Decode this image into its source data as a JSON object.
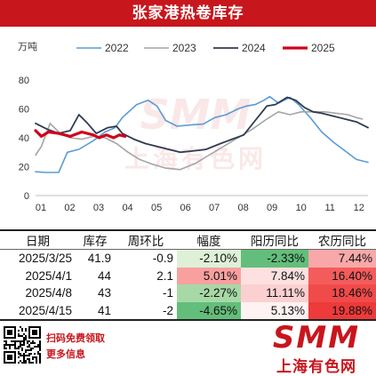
{
  "title": "张家港热卷库存",
  "chart_data": {
    "type": "line",
    "ylabel": "万吨",
    "ylim": [
      0,
      80
    ],
    "yticks": [
      0,
      20,
      40,
      60,
      80
    ],
    "xlim": [
      1,
      12.5
    ],
    "xticks": [
      "01",
      "02",
      "03",
      "04",
      "05",
      "06",
      "07",
      "08",
      "09",
      "10",
      "11",
      "12"
    ],
    "grid": false,
    "legend_position": "top",
    "watermark": "SMM 上海有色网",
    "series": [
      {
        "name": "2022",
        "color": "#5b9bd5",
        "width": 1.6,
        "points": [
          [
            1.0,
            16.5
          ],
          [
            1.35,
            16
          ],
          [
            1.8,
            16
          ],
          [
            2.1,
            30
          ],
          [
            2.5,
            32
          ],
          [
            3.0,
            38
          ],
          [
            3.4,
            44
          ],
          [
            3.75,
            47
          ],
          [
            4.0,
            54
          ],
          [
            4.5,
            63
          ],
          [
            4.9,
            66
          ],
          [
            5.2,
            62
          ],
          [
            5.5,
            52
          ],
          [
            5.9,
            48
          ],
          [
            6.4,
            49
          ],
          [
            6.8,
            49.5
          ],
          [
            7.2,
            54
          ],
          [
            7.6,
            56
          ],
          [
            8.0,
            60
          ],
          [
            8.3,
            62
          ],
          [
            8.6,
            63
          ],
          [
            8.9,
            66
          ],
          [
            9.1,
            68.5
          ],
          [
            9.4,
            64
          ],
          [
            9.8,
            68
          ],
          [
            10.1,
            63
          ],
          [
            10.5,
            54
          ],
          [
            10.9,
            44
          ],
          [
            11.3,
            37
          ],
          [
            11.7,
            31
          ],
          [
            12.1,
            25
          ],
          [
            12.5,
            23
          ]
        ]
      },
      {
        "name": "2023",
        "color": "#a5a5a5",
        "width": 1.6,
        "points": [
          [
            1.0,
            28
          ],
          [
            1.2,
            34
          ],
          [
            1.5,
            50
          ],
          [
            1.8,
            44
          ],
          [
            2.2,
            40
          ],
          [
            2.6,
            39
          ],
          [
            3.0,
            41
          ],
          [
            3.4,
            40
          ],
          [
            3.8,
            36
          ],
          [
            4.2,
            30
          ],
          [
            4.6,
            25
          ],
          [
            5.0,
            22
          ],
          [
            5.5,
            19
          ],
          [
            6.0,
            18
          ],
          [
            6.5,
            22
          ],
          [
            7.0,
            28
          ],
          [
            7.5,
            34
          ],
          [
            8.0,
            40
          ],
          [
            8.5,
            46
          ],
          [
            9.0,
            53
          ],
          [
            9.4,
            58
          ],
          [
            9.8,
            56
          ],
          [
            10.2,
            58
          ],
          [
            10.6,
            58
          ],
          [
            11.0,
            58
          ],
          [
            11.4,
            57
          ],
          [
            11.8,
            56
          ],
          [
            12.1,
            54
          ],
          [
            12.3,
            53
          ]
        ]
      },
      {
        "name": "2024",
        "color": "#2f3b50",
        "width": 1.8,
        "points": [
          [
            1.0,
            50
          ],
          [
            1.4,
            46
          ],
          [
            1.8,
            43
          ],
          [
            2.2,
            45
          ],
          [
            2.5,
            56
          ],
          [
            2.8,
            50
          ],
          [
            3.1,
            43
          ],
          [
            3.5,
            47
          ],
          [
            3.8,
            48
          ],
          [
            4.0,
            43
          ],
          [
            4.4,
            39
          ],
          [
            4.8,
            36
          ],
          [
            5.2,
            34
          ],
          [
            5.6,
            32
          ],
          [
            6.0,
            30
          ],
          [
            6.5,
            31
          ],
          [
            6.9,
            32
          ],
          [
            7.4,
            36
          ],
          [
            7.8,
            39
          ],
          [
            8.2,
            42
          ],
          [
            8.6,
            52
          ],
          [
            9.0,
            62
          ],
          [
            9.3,
            63
          ],
          [
            9.7,
            68
          ],
          [
            10.0,
            66
          ],
          [
            10.3,
            61
          ],
          [
            10.6,
            58
          ],
          [
            10.9,
            57
          ],
          [
            11.3,
            55
          ],
          [
            11.7,
            53
          ],
          [
            12.1,
            51
          ],
          [
            12.5,
            47
          ]
        ]
      },
      {
        "name": "2025",
        "color": "#d0021b",
        "width": 3.2,
        "points": [
          [
            1.0,
            45
          ],
          [
            1.2,
            41
          ],
          [
            1.45,
            44
          ],
          [
            1.8,
            43
          ],
          [
            2.2,
            41
          ],
          [
            2.6,
            44
          ],
          [
            3.0,
            42
          ],
          [
            3.2,
            40
          ],
          [
            3.45,
            42
          ],
          [
            3.7,
            40
          ],
          [
            3.9,
            42
          ],
          [
            4.1,
            41
          ]
        ]
      }
    ]
  },
  "table": {
    "headers": [
      "日期",
      "库存",
      "周环比",
      "幅度",
      "阳历同比",
      "农历同比"
    ],
    "rows": [
      [
        "2025/3/25",
        "41.9",
        "-0.9",
        "-2.10%",
        "-2.33%",
        "7.44%"
      ],
      [
        "2025/4/1",
        "44",
        "2.1",
        "5.01%",
        "7.84%",
        "16.40%"
      ],
      [
        "2025/4/8",
        "43",
        "-1",
        "-2.27%",
        "11.11%",
        "18.46%"
      ],
      [
        "2025/4/15",
        "41",
        "-2",
        "-4.65%",
        "5.13%",
        "19.88%"
      ]
    ],
    "cell_colors": [
      [
        null,
        null,
        null,
        "#dff0d8",
        "#63be7b",
        "#f8a8a8"
      ],
      [
        null,
        null,
        null,
        "#f8a0a0",
        "#fde0e0",
        "#f45c5c"
      ],
      [
        null,
        null,
        null,
        "#a7d9a7",
        "#fbd0d0",
        "#f14a4a"
      ],
      [
        null,
        null,
        null,
        "#63be7b",
        "#fff2f2",
        "#ee3a3a"
      ]
    ]
  },
  "footer": {
    "line1": "扫码免费领取",
    "line2": "更多信息",
    "logo": "SMM",
    "logo_cn": "上海有色网"
  }
}
